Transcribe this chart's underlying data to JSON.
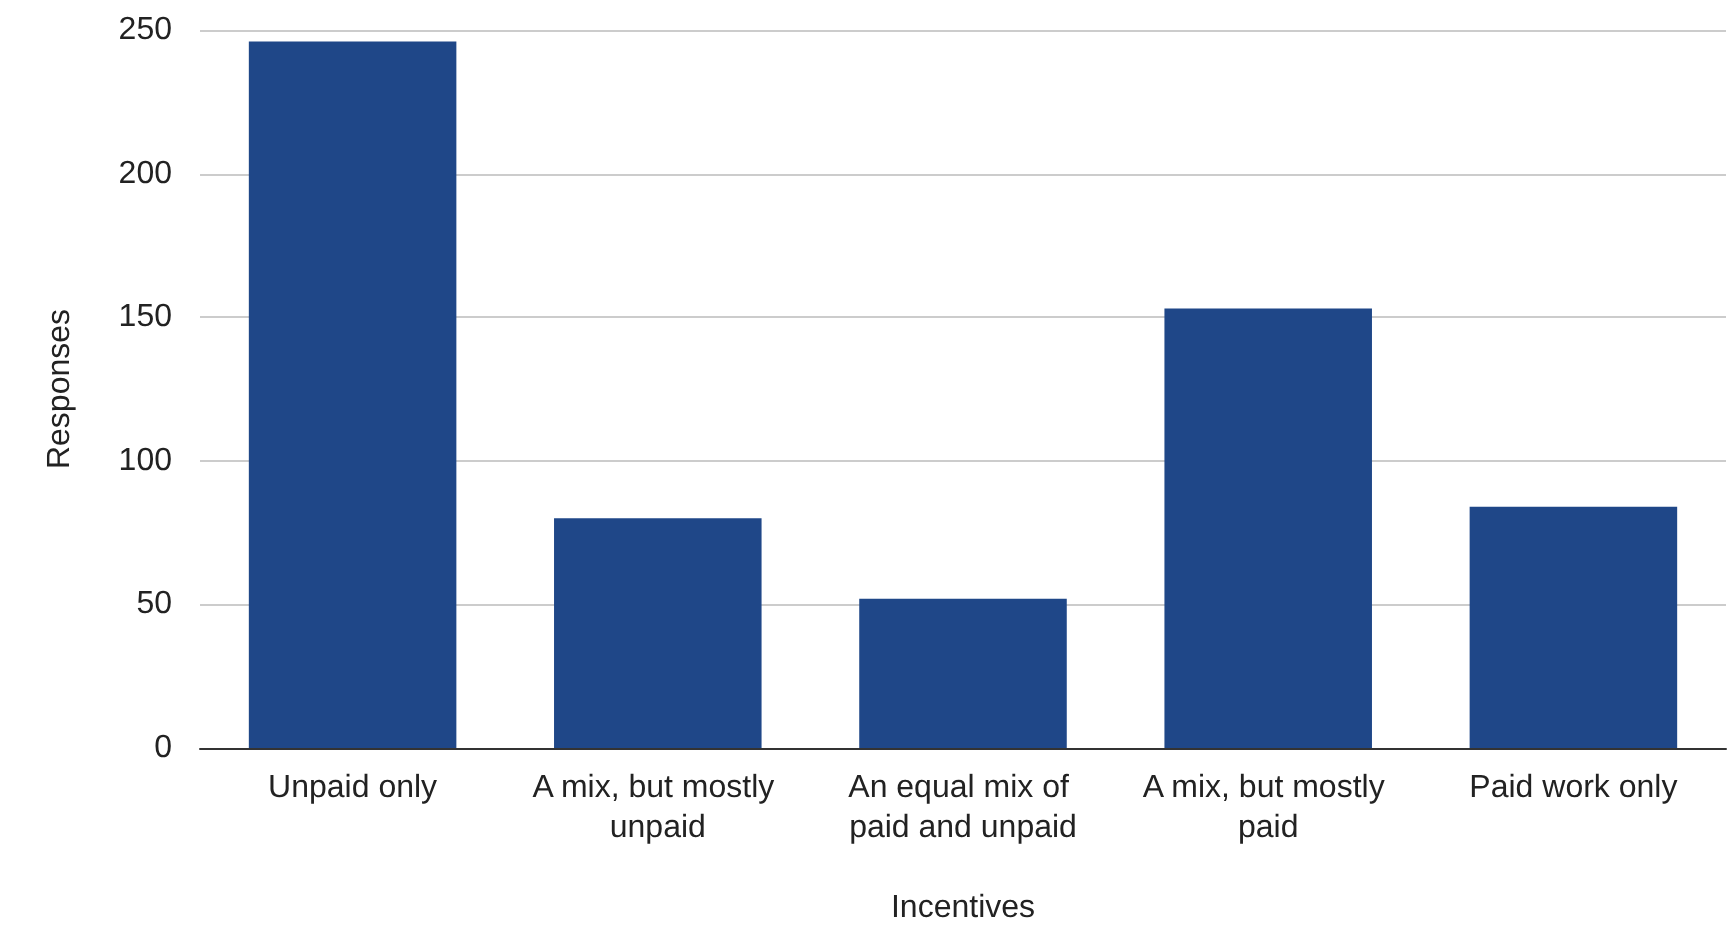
{
  "chart_data": {
    "type": "bar",
    "xlabel": "Incentives",
    "ylabel": "Responses",
    "categories": [
      "Unpaid only",
      "A mix, but mostly unpaid",
      "An equal mix of paid and unpaid",
      "A mix, but mostly paid",
      "Paid work only"
    ],
    "values": [
      246,
      80,
      52,
      153,
      84
    ],
    "color": "#1f4788",
    "ylim": [
      0,
      250
    ],
    "yticks": [
      0,
      50,
      100,
      150,
      200,
      250
    ],
    "grid": "y"
  }
}
